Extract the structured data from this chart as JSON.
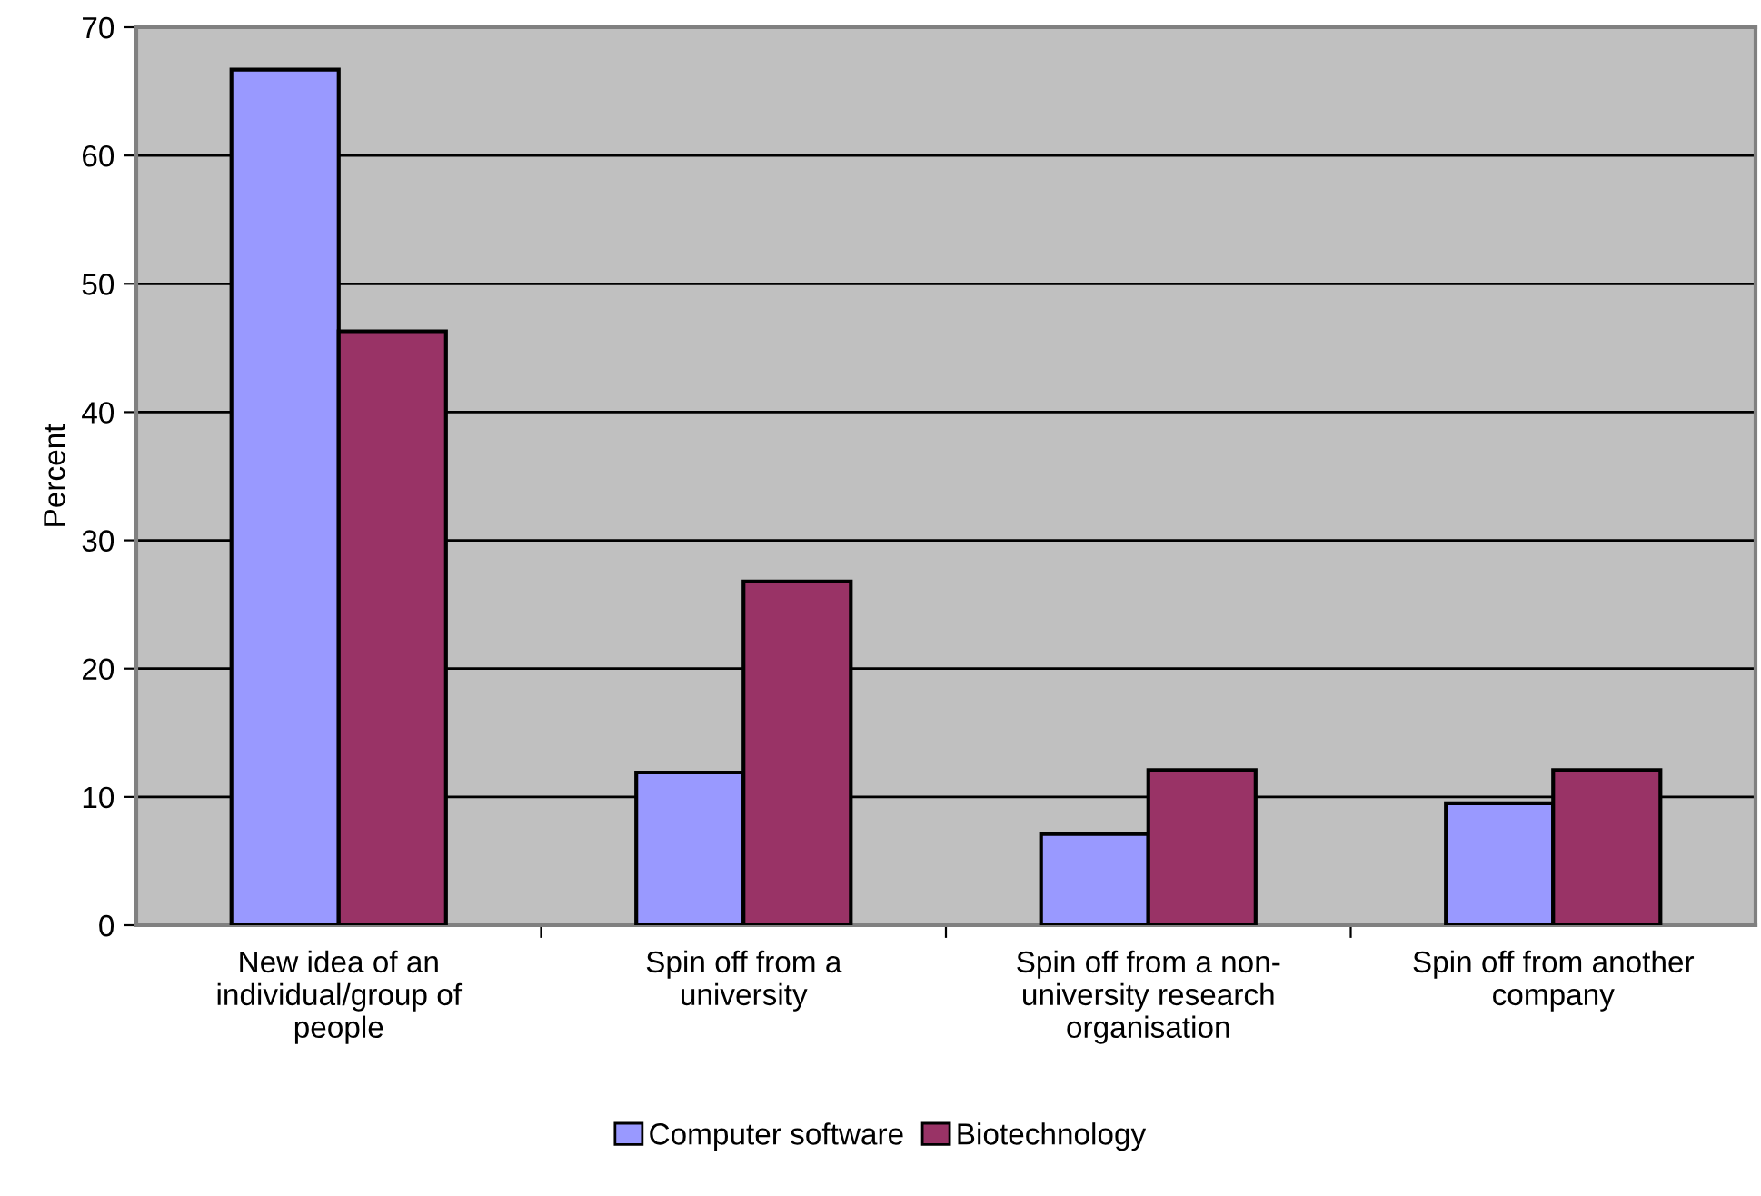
{
  "chart_data": {
    "type": "bar",
    "ylabel": "Percent",
    "categories": [
      "New idea of an\nindividual/group of\npeople",
      "Spin off from a\nuniversity",
      "Spin off from a non-\nuniversity research\norganisation",
      "Spin off from another\ncompany"
    ],
    "series": [
      {
        "name": "Computer software",
        "color": "#9999ff",
        "values": [
          66.7,
          11.9,
          7.1,
          9.5
        ]
      },
      {
        "name": "Biotechnology",
        "color": "#993366",
        "values": [
          46.3,
          26.8,
          12.1,
          12.1
        ]
      }
    ],
    "ylim": [
      0,
      70
    ],
    "yticks": [
      0,
      10,
      20,
      30,
      40,
      50,
      60,
      70
    ],
    "grid": "y",
    "legend": "bottom"
  }
}
